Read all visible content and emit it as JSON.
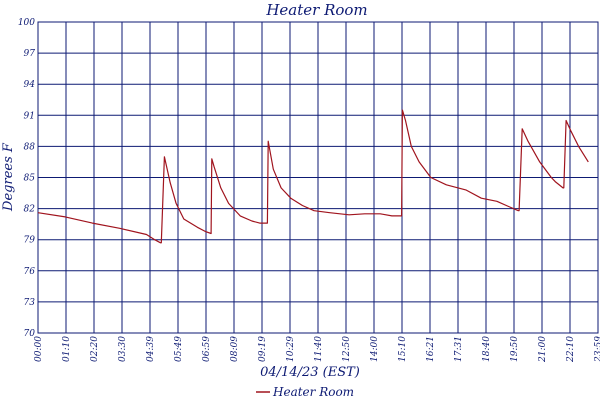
{
  "chart_data": {
    "type": "line",
    "title": "Heater Room",
    "xlabel": "04/14/23 (EST)",
    "ylabel": "Degrees F",
    "ylim": [
      70,
      100
    ],
    "yticks": [
      "70",
      "73",
      "76",
      "79",
      "82",
      "85",
      "88",
      "91",
      "94",
      "97",
      "100"
    ],
    "xticks": [
      "00:00",
      "01:10",
      "02:20",
      "03:30",
      "04:39",
      "05:49",
      "06:59",
      "08:09",
      "09:19",
      "10:29",
      "11:40",
      "12:50",
      "14:00",
      "15:10",
      "16:21",
      "17:31",
      "18:40",
      "19:50",
      "21:00",
      "22:10",
      "23:59"
    ],
    "grid": true,
    "legend_position": "bottom-center",
    "line_color": "#a0141e",
    "grid_color": "#0d1a73",
    "series": [
      {
        "name": "Heater Room",
        "x": [
          "00:00",
          "01:10",
          "02:20",
          "03:30",
          "04:39",
          "05:00",
          "05:15",
          "05:17",
          "05:25",
          "05:40",
          "05:55",
          "06:15",
          "06:50",
          "07:10",
          "07:25",
          "07:27",
          "07:33",
          "07:50",
          "08:10",
          "08:40",
          "09:10",
          "09:30",
          "09:50",
          "09:52",
          "10:05",
          "10:25",
          "10:50",
          "11:20",
          "11:50",
          "12:30",
          "13:20",
          "14:00",
          "14:40",
          "15:10",
          "15:35",
          "15:37",
          "15:45",
          "16:00",
          "16:20",
          "16:50",
          "17:30",
          "18:20",
          "19:00",
          "19:40",
          "20:10",
          "20:35",
          "20:37",
          "20:45",
          "21:00",
          "21:30",
          "22:00",
          "22:10",
          "22:30",
          "22:32",
          "22:38",
          "22:50",
          "23:10",
          "23:35"
        ],
        "y": [
          81.6,
          81.2,
          80.6,
          80.1,
          79.5,
          79.0,
          78.7,
          78.7,
          87.0,
          84.5,
          82.5,
          81.0,
          80.2,
          79.8,
          79.6,
          86.8,
          86.0,
          84.0,
          82.5,
          81.3,
          80.8,
          80.6,
          80.6,
          88.5,
          85.8,
          84.0,
          83.0,
          82.3,
          81.8,
          81.6,
          81.4,
          81.5,
          81.5,
          81.3,
          81.3,
          91.5,
          90.5,
          88.0,
          86.5,
          85.0,
          84.3,
          83.8,
          83.0,
          82.7,
          82.2,
          81.8,
          81.8,
          89.7,
          88.5,
          86.5,
          85.0,
          84.6,
          84.0,
          84.0,
          90.5,
          89.5,
          88.0,
          86.5
        ]
      }
    ]
  }
}
